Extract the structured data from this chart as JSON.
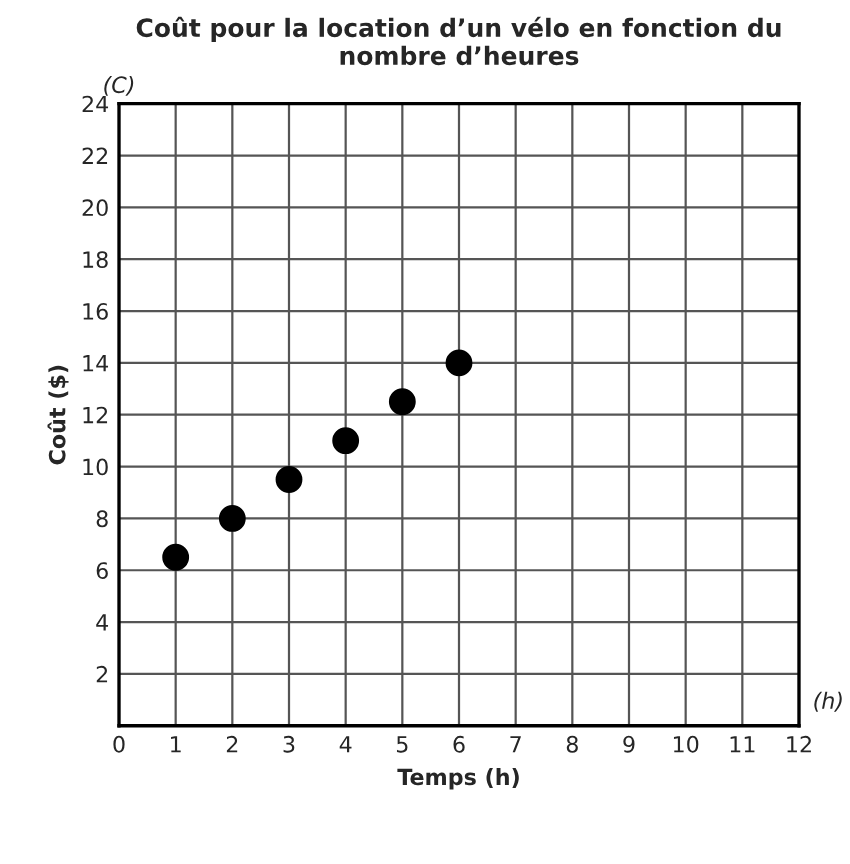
{
  "chart_data": {
    "type": "scatter",
    "title": "Coût pour la location d’un vélo en fonction du\nnombre d’heures",
    "xlabel": "Temps (h)",
    "ylabel": "Coût ($)",
    "annotations": [
      "(C)",
      "(h)"
    ],
    "x": [
      1,
      2,
      3,
      4,
      5,
      6
    ],
    "series": [
      {
        "color": "#000000",
        "values": [
          6.5,
          8,
          9.5,
          11,
          12.5,
          14
        ]
      }
    ],
    "xlim": [
      0,
      12
    ],
    "ylim": [
      0,
      24
    ],
    "xticks": [
      0,
      1,
      2,
      3,
      4,
      5,
      6,
      7,
      8,
      9,
      10,
      11,
      12
    ],
    "yticks": [
      {
        "value": 0,
        "label": null
      },
      2,
      4,
      6,
      8,
      10,
      12,
      14,
      16,
      18,
      20,
      22,
      24
    ],
    "grid": true,
    "marker": "circle"
  }
}
